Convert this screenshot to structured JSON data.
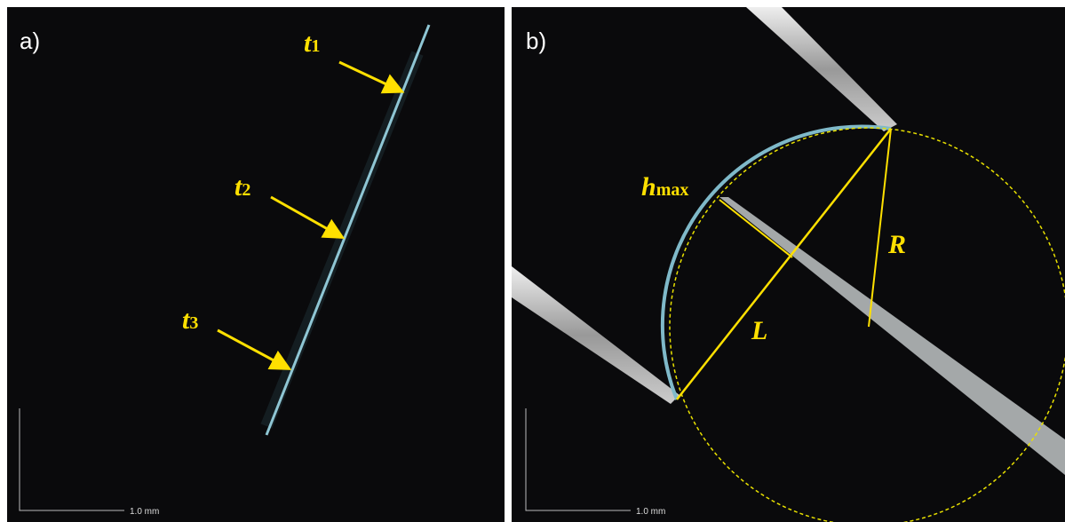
{
  "panels": [
    {
      "label": "a)",
      "scale_bar": "1.0 mm",
      "annotations": [
        {
          "text": "t",
          "sub": "1"
        },
        {
          "text": "t",
          "sub": "2"
        },
        {
          "text": "t",
          "sub": "3"
        }
      ]
    },
    {
      "label": "b)",
      "scale_bar": "1.0 mm",
      "annotations": [
        {
          "text": "h",
          "sub": "max"
        },
        {
          "text": "R"
        },
        {
          "text": "L"
        }
      ]
    }
  ]
}
